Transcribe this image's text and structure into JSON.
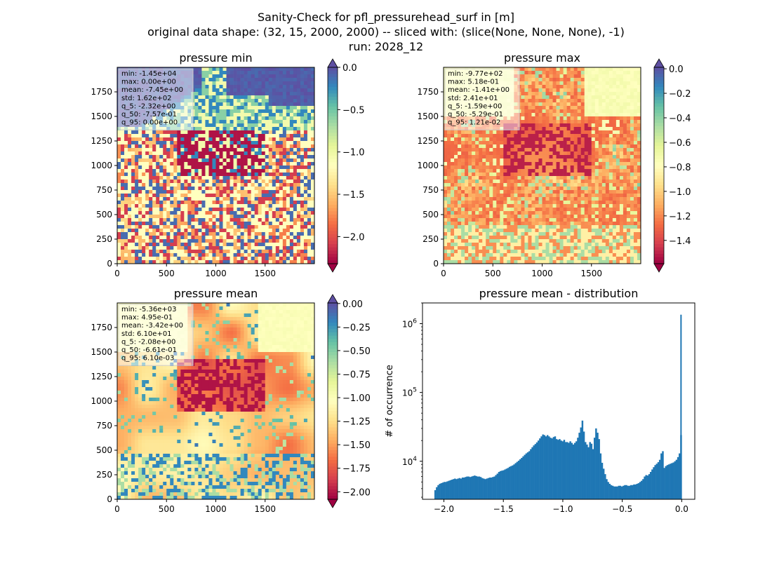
{
  "suptitle": [
    "Sanity-Check for pfl_pressurehead_surf in [m]",
    "original data shape: (32, 15, 2000, 2000) -- sliced with: (slice(None, None, None), -1)",
    "run: 2028_12"
  ],
  "colormap": "Spectral",
  "chart_data": [
    {
      "type": "heatmap",
      "title": "pressure min",
      "xlim": [
        0,
        2000
      ],
      "ylim": [
        0,
        2000
      ],
      "xticks": [
        "0",
        "500",
        "1000",
        "1500"
      ],
      "yticks": [
        "0",
        "250",
        "500",
        "750",
        "1000",
        "1250",
        "1500",
        "1750"
      ],
      "colorbar": {
        "range": [
          -2.32,
          0.0
        ],
        "ticks": [
          "0.0",
          "-0.5",
          "-1.0",
          "-1.5",
          "-2.0"
        ],
        "extend": "both",
        "over_color": "#5e4fa2"
      },
      "stats": [
        "min: -1.45e+04",
        "max: 0.00e+00",
        "mean: -7.45e+00",
        "std: 1.62e+02",
        "q_5: -2.32e+00",
        "q_50: -7.57e-01",
        "q_95: 0.00e+00"
      ]
    },
    {
      "type": "heatmap",
      "title": "pressure max",
      "xlim": [
        0,
        2000
      ],
      "ylim": [
        0,
        2000
      ],
      "xticks": [
        "0",
        "500",
        "1000",
        "1500"
      ],
      "yticks": [
        "0",
        "250",
        "500",
        "750",
        "1000",
        "1250",
        "1500",
        "1750"
      ],
      "colorbar": {
        "range": [
          -1.59,
          0.012
        ],
        "ticks": [
          "0.0",
          "-0.2",
          "-0.4",
          "-0.6",
          "-0.8",
          "-1.0",
          "-1.2",
          "-1.4"
        ],
        "extend": "both",
        "over_color": "#5e4fa2"
      },
      "stats": [
        "min: -9.77e+02",
        "max: 5.18e-01",
        "mean: -1.41e+00",
        "std: 2.41e+01",
        "q_5: -1.59e+00",
        "q_50: -5.29e-01",
        "q_95: 1.21e-02"
      ]
    },
    {
      "type": "heatmap",
      "title": "pressure mean",
      "xlim": [
        0,
        2000
      ],
      "ylim": [
        0,
        2000
      ],
      "xticks": [
        "0",
        "500",
        "1000",
        "1500"
      ],
      "yticks": [
        "0",
        "250",
        "500",
        "750",
        "1000",
        "1250",
        "1500",
        "1750"
      ],
      "colorbar": {
        "range": [
          -2.08,
          0.0061
        ],
        "ticks": [
          "0.00",
          "-0.25",
          "-0.50",
          "-0.75",
          "-1.00",
          "-1.25",
          "-1.50",
          "-1.75",
          "-2.00"
        ],
        "extend": "both",
        "over_color": "#5e4fa2"
      },
      "stats": [
        "min: -5.36e+03",
        "max: 4.95e-01",
        "mean: -3.42e+00",
        "std: 6.10e+01",
        "q_5: -2.08e+00",
        "q_50: -6.61e-01",
        "q_95: 6.10e-03"
      ]
    },
    {
      "type": "bar",
      "title": "pressure mean - distribution",
      "ylabel": "# of occurrence",
      "xlabel": "",
      "yscale": "log",
      "xlim": [
        -2.18,
        0.11
      ],
      "ylim": [
        2800,
        2000000
      ],
      "xticks": [
        -2.0,
        -1.5,
        -1.0,
        -0.5,
        0.0
      ],
      "xtick_labels": [
        "−2.0",
        "−1.5",
        "−1.0",
        "−0.5",
        "0.0"
      ],
      "ytick_labels": [
        {
          "value": 10000,
          "base": "10",
          "exp": "4"
        },
        {
          "value": 100000,
          "base": "10",
          "exp": "5"
        },
        {
          "value": 1000000,
          "base": "10",
          "exp": "6"
        }
      ],
      "bar_color": "#1f77b4",
      "x_range": [
        -2.08,
        0.0
      ],
      "counts": [
        3800,
        4200,
        4500,
        4700,
        4800,
        4900,
        5000,
        5000,
        5100,
        5200,
        5300,
        5400,
        5500,
        5600,
        5500,
        5600,
        5700,
        5600,
        5800,
        5800,
        5900,
        6000,
        6000,
        5900,
        6000,
        6100,
        6200,
        6100,
        6000,
        6000,
        5900,
        5700,
        5600,
        5500,
        5600,
        5700,
        5800,
        5800,
        5900,
        6000,
        6300,
        6600,
        7000,
        7200,
        7300,
        7400,
        7600,
        7800,
        8000,
        8300,
        8500,
        8700,
        9000,
        9400,
        9800,
        10200,
        10700,
        11200,
        11800,
        12400,
        13000,
        13500,
        14000,
        15000,
        16000,
        17000,
        17800,
        18800,
        20000,
        21500,
        23000,
        24500,
        24000,
        23000,
        24000,
        23000,
        22000,
        21500,
        22500,
        23000,
        21000,
        20500,
        21000,
        20000,
        19500,
        20500,
        19000,
        19000,
        18500,
        19500,
        18500,
        17500,
        18500,
        19500,
        22000,
        26000,
        31000,
        39000,
        27000,
        19000,
        17500,
        16000,
        19000,
        18000,
        15000,
        22000,
        30000,
        26000,
        21000,
        13000,
        9500,
        7800,
        6500,
        5500,
        5000,
        4700,
        4500,
        4400,
        4300,
        4300,
        4300,
        4400,
        4400,
        4300,
        4400,
        4500,
        4500,
        4400,
        4400,
        4500,
        4500,
        4600,
        4600,
        4700,
        4800,
        5000,
        5200,
        5500,
        6000,
        6300,
        6200,
        6500,
        7000,
        7600,
        8200,
        8800,
        9200,
        9700,
        10500,
        13000,
        14000,
        8000,
        8500,
        8800,
        9000,
        9200,
        9400,
        9600,
        10000,
        10500,
        11500,
        13000,
        24000
      ]
    }
  ]
}
